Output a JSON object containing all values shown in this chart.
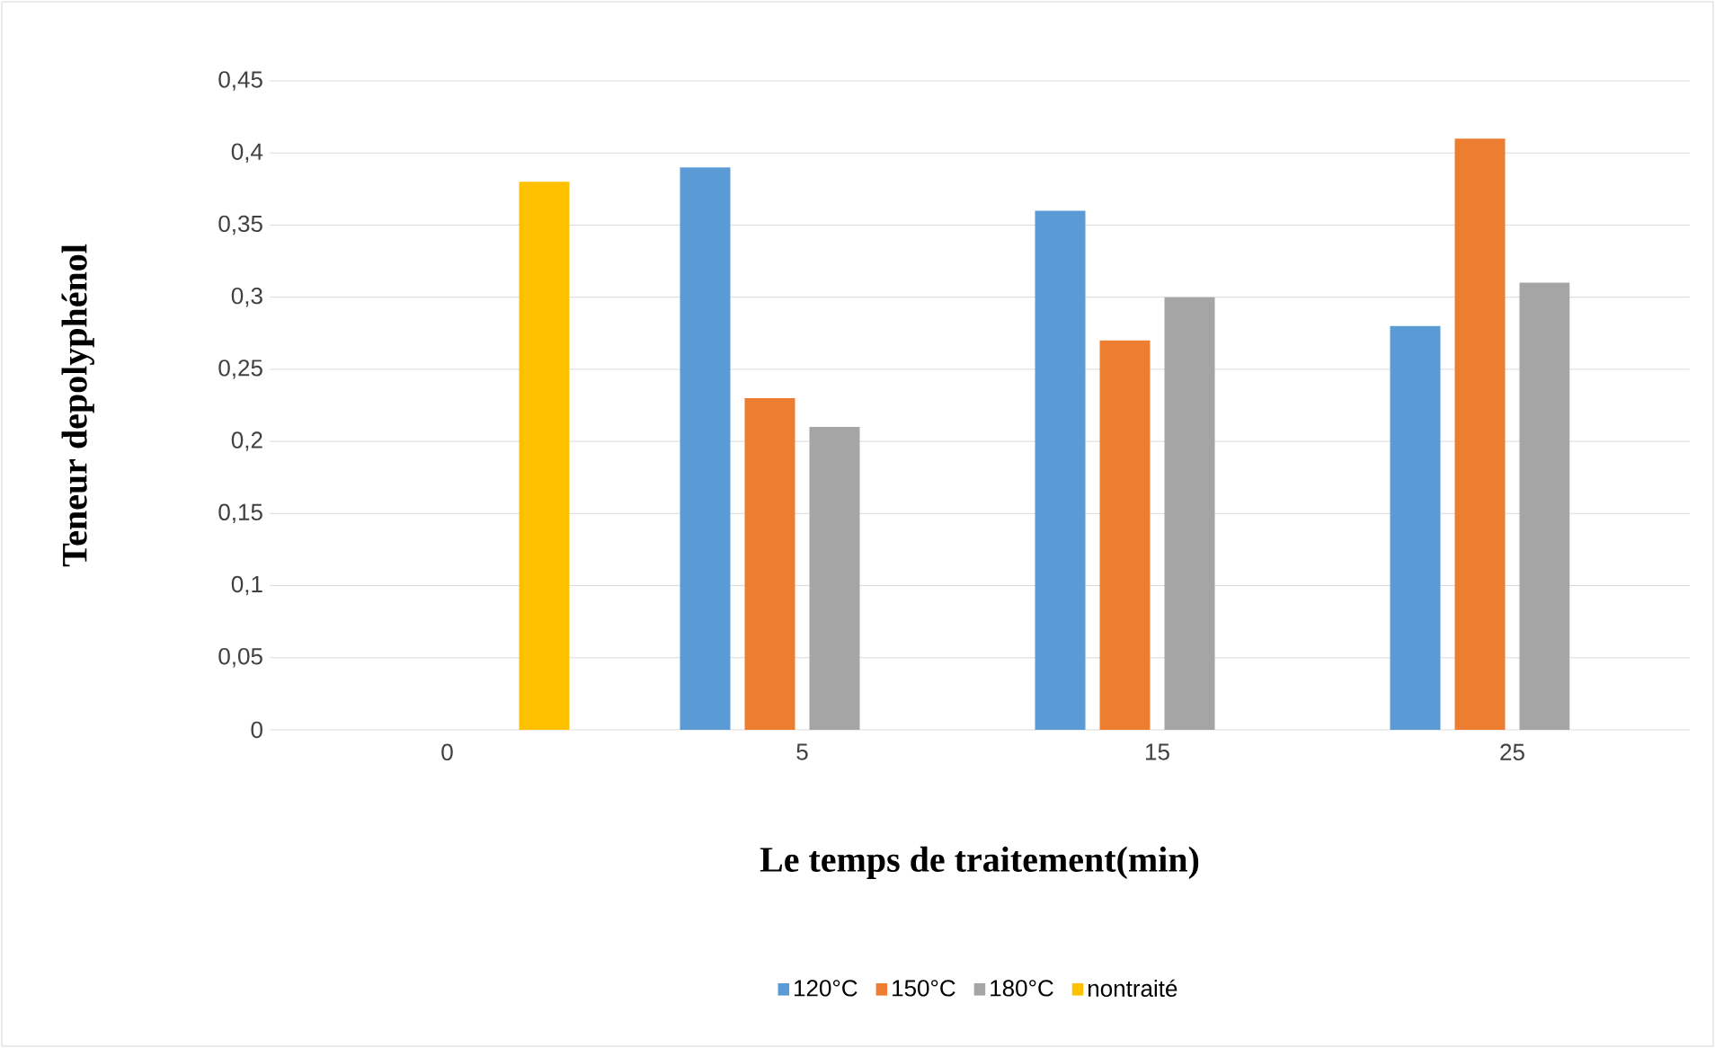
{
  "chart_data": {
    "type": "bar",
    "xlabel": "Le temps de traitement(min)",
    "ylabel": "Teneur depolyphénol",
    "categories": [
      "0",
      "5",
      "15",
      "25"
    ],
    "series": [
      {
        "name": "120°C",
        "color": "#5b9bd5",
        "values": [
          null,
          0.39,
          0.36,
          0.28
        ]
      },
      {
        "name": "150°C",
        "color": "#ed7d31",
        "values": [
          null,
          0.23,
          0.27,
          0.41
        ]
      },
      {
        "name": "180°C",
        "color": "#a5a5a5",
        "values": [
          null,
          0.21,
          0.3,
          0.31
        ]
      },
      {
        "name": "nontraité",
        "color": "#ffc000",
        "values": [
          0.38,
          null,
          null,
          null
        ]
      }
    ],
    "ylim": [
      0,
      0.45
    ],
    "yticks": [
      {
        "value": 0,
        "label": "0"
      },
      {
        "value": 0.05,
        "label": "0,05"
      },
      {
        "value": 0.1,
        "label": "0,1"
      },
      {
        "value": 0.15,
        "label": "0,15"
      },
      {
        "value": 0.2,
        "label": "0,2"
      },
      {
        "value": 0.25,
        "label": "0,25"
      },
      {
        "value": 0.3,
        "label": "0,3"
      },
      {
        "value": 0.35,
        "label": "0,35"
      },
      {
        "value": 0.4,
        "label": "0,4"
      },
      {
        "value": 0.45,
        "label": "0,45"
      }
    ],
    "grid": "y",
    "legend": "bottom"
  }
}
